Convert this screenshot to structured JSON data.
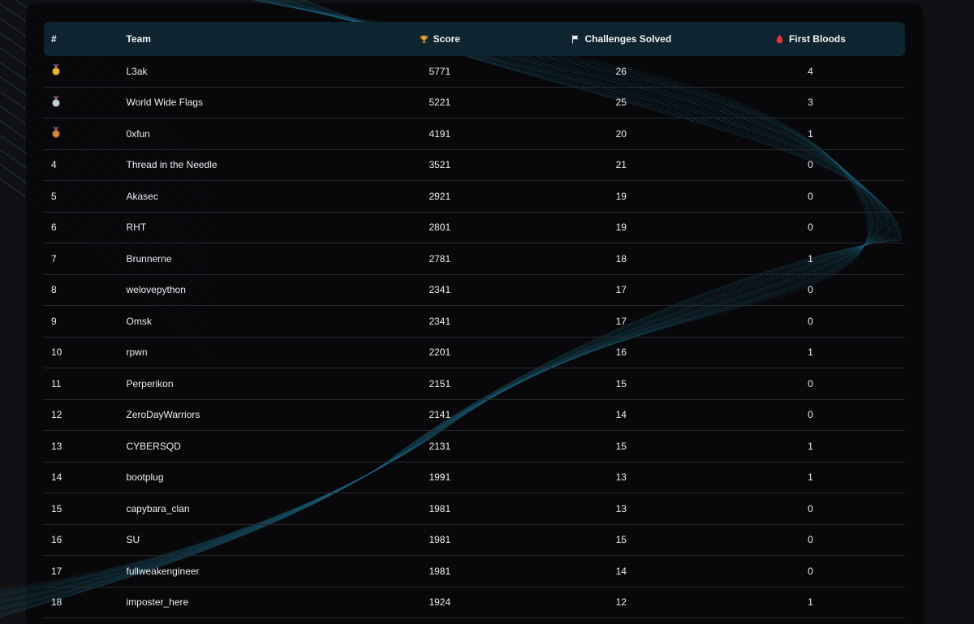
{
  "colors": {
    "header_bg": "#0e2430",
    "gold": "#d9a23a",
    "silver": "#b9c4cc",
    "bronze": "#c57a3a",
    "blood": "#e0363a",
    "line": "#1f6f8a"
  },
  "table": {
    "headers": {
      "rank": "#",
      "team": "Team",
      "score": "Score",
      "solved": "Challenges Solved",
      "bloods": "First Bloods"
    },
    "header_icons": {
      "score": "trophy-icon",
      "solved": "flag-icon",
      "bloods": "blood-drop-icon"
    },
    "rows": [
      {
        "rank": "",
        "medal": "gold-medal-icon",
        "team": "L3ak",
        "score": "5771",
        "solved": "26",
        "bloods": "4"
      },
      {
        "rank": "",
        "medal": "silver-medal-icon",
        "team": "World Wide Flags",
        "score": "5221",
        "solved": "25",
        "bloods": "3"
      },
      {
        "rank": "",
        "medal": "bronze-medal-icon",
        "team": "0xfun",
        "score": "4191",
        "solved": "20",
        "bloods": "1"
      },
      {
        "rank": "4",
        "team": "Thread in the Needle",
        "score": "3521",
        "solved": "21",
        "bloods": "0"
      },
      {
        "rank": "5",
        "team": "Akasec",
        "score": "2921",
        "solved": "19",
        "bloods": "0"
      },
      {
        "rank": "6",
        "team": "RHT",
        "score": "2801",
        "solved": "19",
        "bloods": "0"
      },
      {
        "rank": "7",
        "team": "Brunnerne",
        "score": "2781",
        "solved": "18",
        "bloods": "1"
      },
      {
        "rank": "8",
        "team": "welovepython",
        "score": "2341",
        "solved": "17",
        "bloods": "0"
      },
      {
        "rank": "9",
        "team": "Omsk",
        "score": "2341",
        "solved": "17",
        "bloods": "0"
      },
      {
        "rank": "10",
        "team": "rpwn",
        "score": "2201",
        "solved": "16",
        "bloods": "1"
      },
      {
        "rank": "11",
        "team": "Perperikon",
        "score": "2151",
        "solved": "15",
        "bloods": "0"
      },
      {
        "rank": "12",
        "team": "ZeroDayWarriors",
        "score": "2141",
        "solved": "14",
        "bloods": "0"
      },
      {
        "rank": "13",
        "team": "CYBERSQD",
        "score": "2131",
        "solved": "15",
        "bloods": "1"
      },
      {
        "rank": "14",
        "team": "bootplug",
        "score": "1991",
        "solved": "13",
        "bloods": "1"
      },
      {
        "rank": "15",
        "team": "capybara_clan",
        "score": "1981",
        "solved": "13",
        "bloods": "0"
      },
      {
        "rank": "16",
        "team": "SU",
        "score": "1981",
        "solved": "15",
        "bloods": "0"
      },
      {
        "rank": "17",
        "team": "fullweakengineer",
        "score": "1981",
        "solved": "14",
        "bloods": "0"
      },
      {
        "rank": "18",
        "team": "imposter_here",
        "score": "1924",
        "solved": "12",
        "bloods": "1"
      }
    ]
  }
}
